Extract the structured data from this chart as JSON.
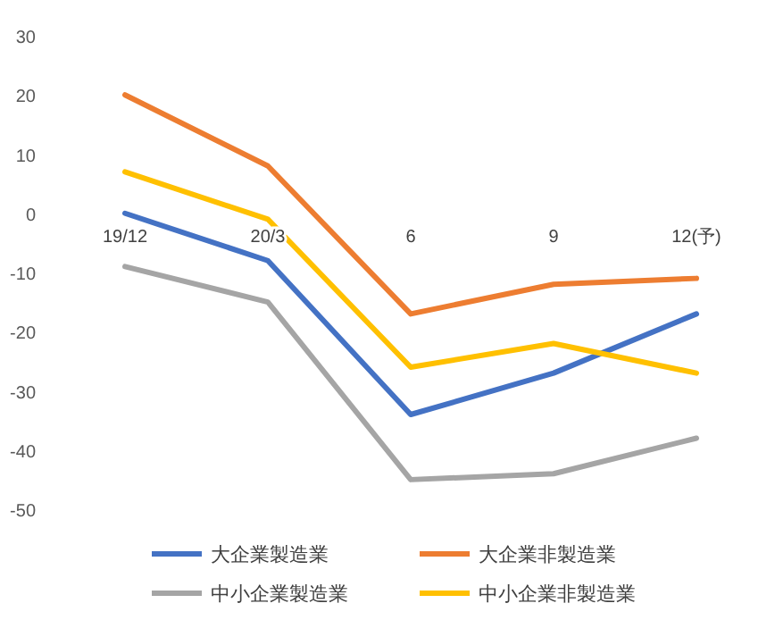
{
  "chart_data": {
    "type": "line",
    "categories": [
      "19/12",
      "20/3",
      "6",
      "9",
      "12(予)"
    ],
    "series": [
      {
        "name": "大企業製造業",
        "color": "#4472c4",
        "values": [
          0,
          -8,
          -34,
          -27,
          -17
        ]
      },
      {
        "name": "大企業非製造業",
        "color": "#ed7d31",
        "values": [
          20,
          8,
          -17,
          -12,
          -11
        ]
      },
      {
        "name": "中小企業製造業",
        "color": "#a5a5a5",
        "values": [
          -9,
          -15,
          -45,
          -44,
          -38
        ]
      },
      {
        "name": "中小企業非製造業",
        "color": "#ffc000",
        "values": [
          7,
          -1,
          -26,
          -22,
          -27
        ]
      }
    ],
    "ylim": [
      -50,
      30
    ],
    "yticks": [
      -50,
      -40,
      -30,
      -20,
      -10,
      0,
      10,
      20,
      30
    ],
    "legend": "bottom",
    "marker": "none",
    "line_style": "solid"
  }
}
